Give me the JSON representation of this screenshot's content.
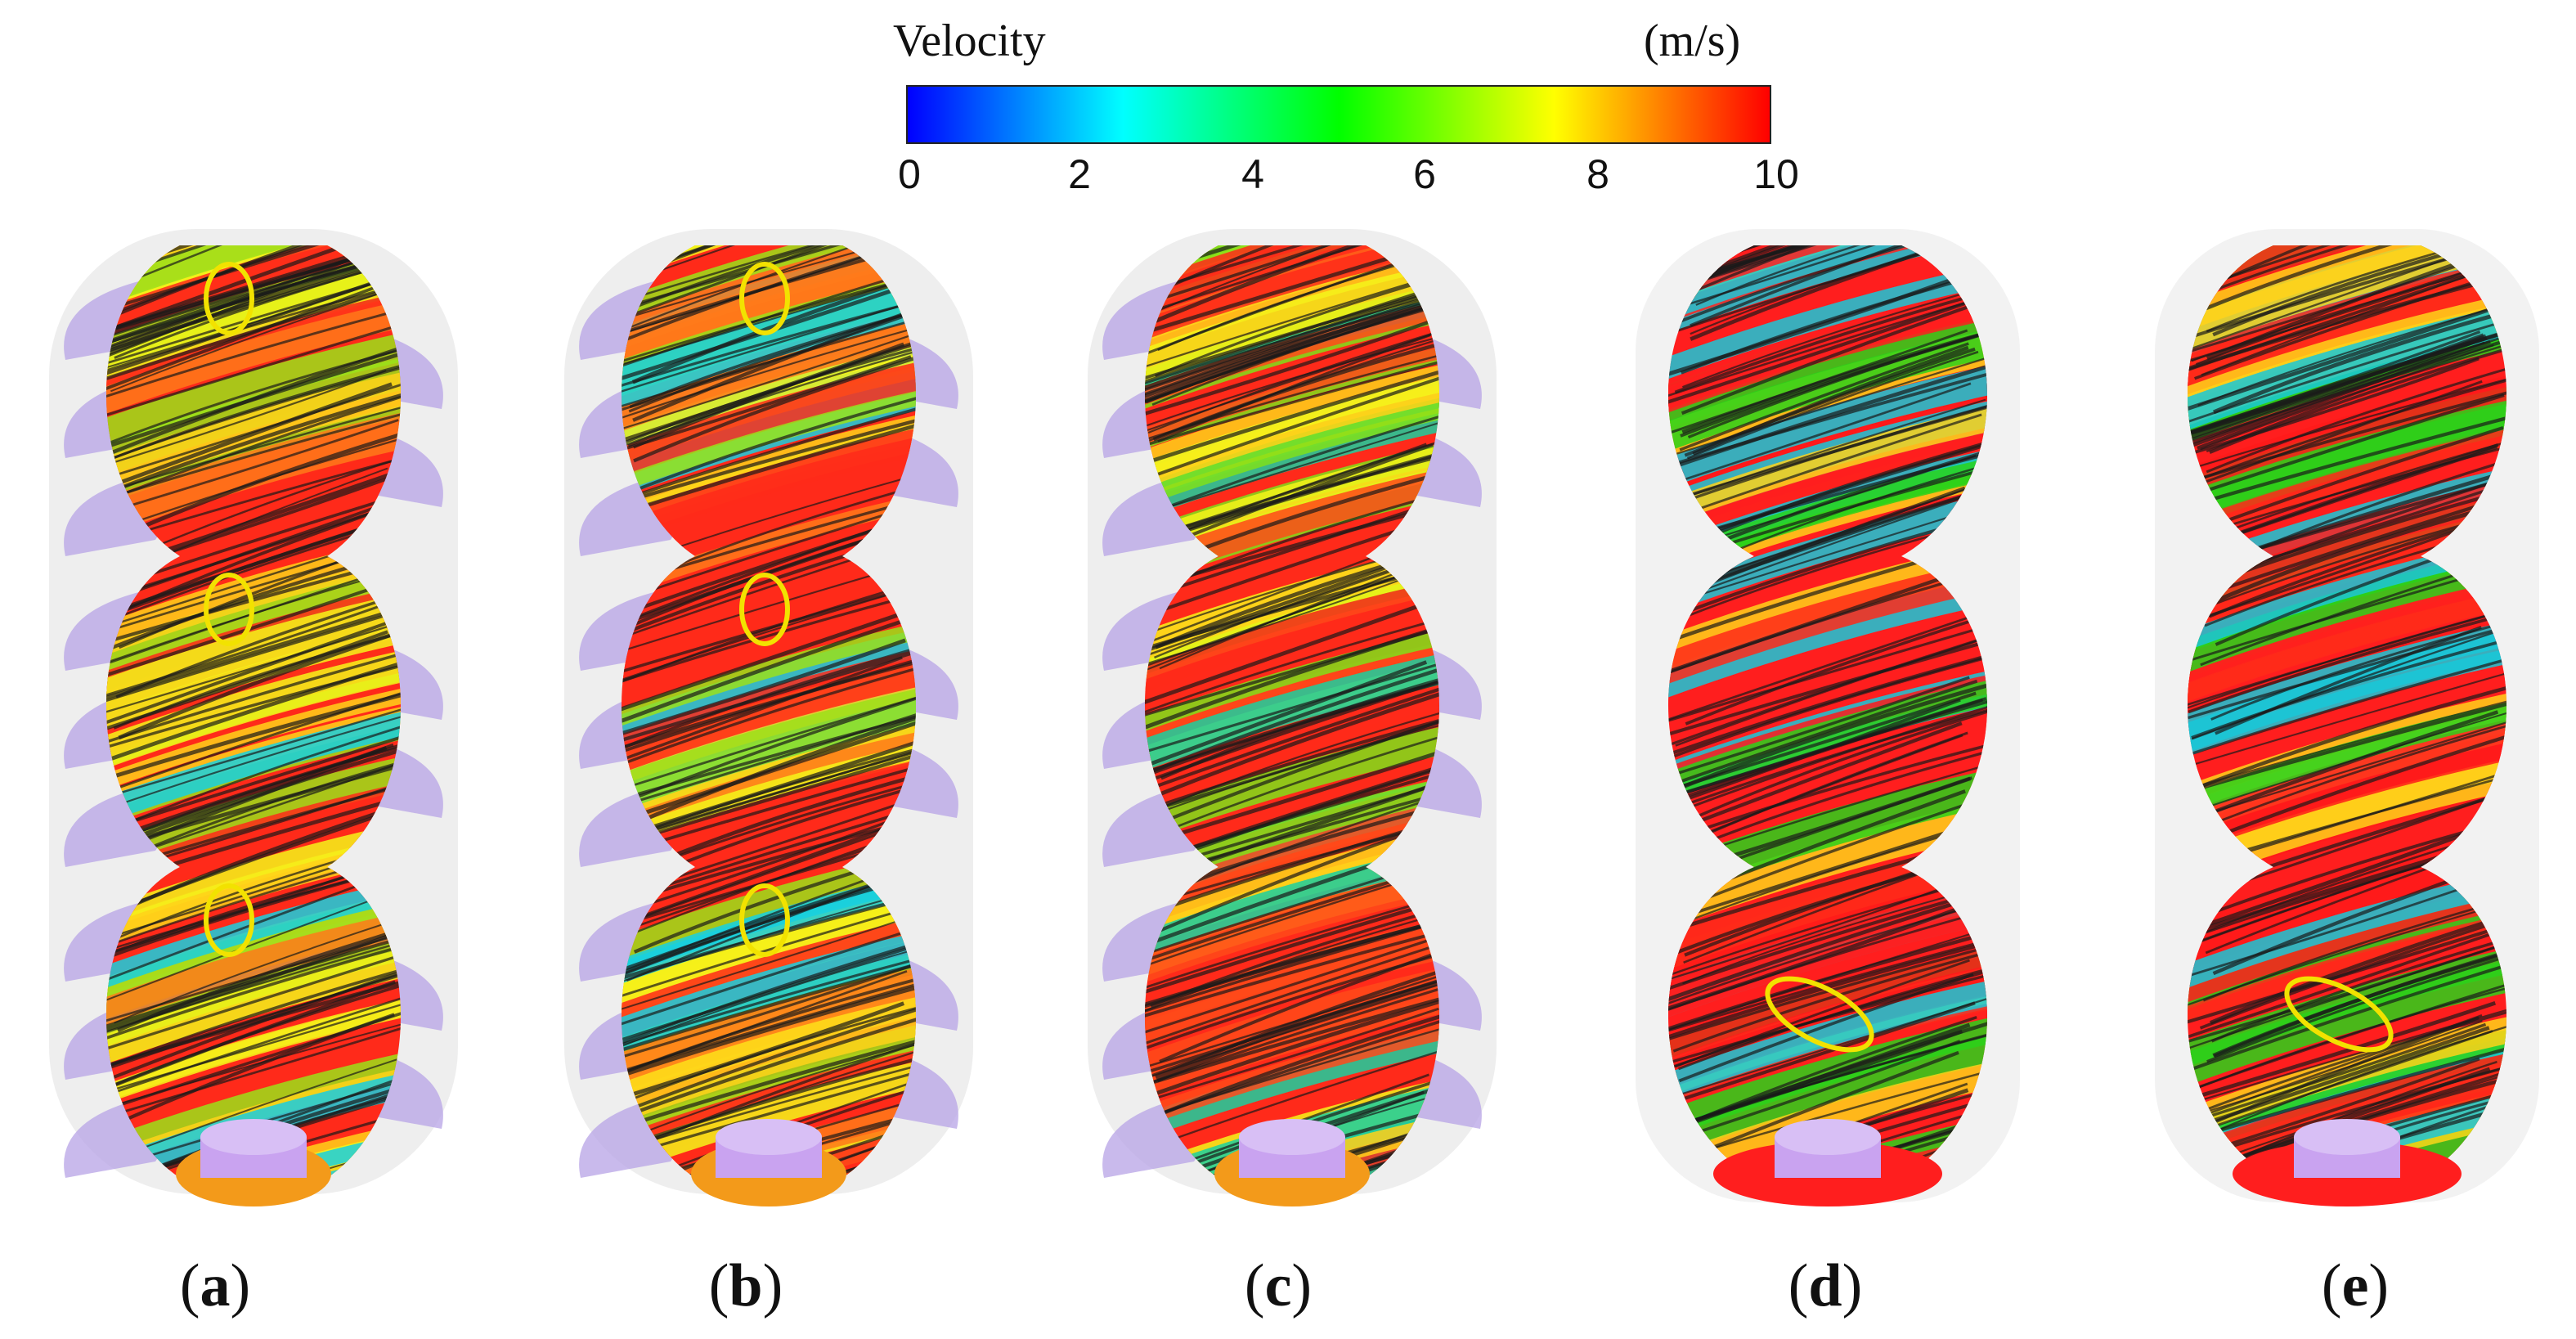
{
  "legend": {
    "title": "Velocity",
    "unit": "(m/s)",
    "ticks": [
      "0",
      "2",
      "4",
      "6",
      "8",
      "10"
    ],
    "min": 0,
    "max": 10,
    "colors": [
      "#0000ff",
      "#00ffff",
      "#00ff00",
      "#ffff00",
      "#ff0000"
    ]
  },
  "panels": [
    {
      "id": "a",
      "open": "(",
      "letter": "a",
      "close": ")",
      "style": "open-mixed",
      "highlights": 3
    },
    {
      "id": "b",
      "open": "(",
      "letter": "b",
      "close": ")",
      "style": "open-mixed",
      "highlights": 3
    },
    {
      "id": "c",
      "open": "(",
      "letter": "c",
      "close": ")",
      "style": "dense-mixed",
      "highlights": 0
    },
    {
      "id": "d",
      "open": "(",
      "letter": "d",
      "close": ")",
      "style": "red-dominant",
      "highlights": 1
    },
    {
      "id": "e",
      "open": "(",
      "letter": "e",
      "close": ")",
      "style": "red-dominant",
      "highlights": 1
    }
  ],
  "colors": {
    "blade_purple": "#b7a3e6",
    "casing_gray": "#d9d9d9",
    "highlight_yellow": "#f2e200",
    "streak_dark": "#1a1a1a"
  }
}
